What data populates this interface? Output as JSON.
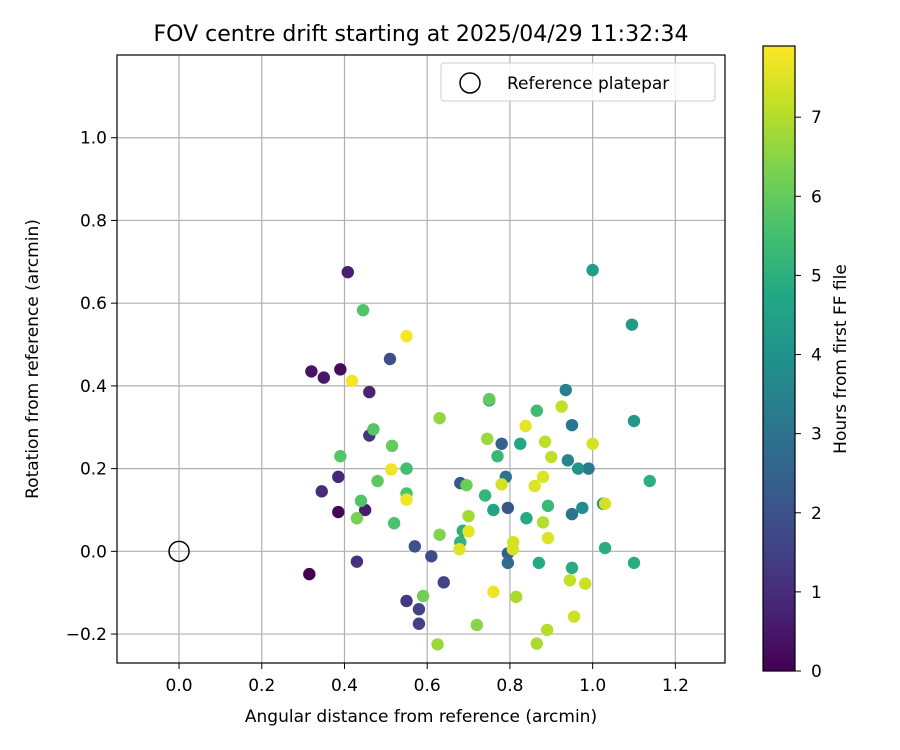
{
  "chart_data": {
    "type": "scatter",
    "title": "FOV centre drift starting at 2025/04/29 11:32:34",
    "xlabel": "Angular distance from reference (arcmin)",
    "ylabel": "Rotation from reference (arcmin)",
    "xlim": [
      -0.15,
      1.32
    ],
    "ylim": [
      -0.27,
      1.2
    ],
    "xticks": [
      0.0,
      0.2,
      0.4,
      0.6,
      0.8,
      1.0,
      1.2
    ],
    "xtick_labels": [
      "0.0",
      "0.2",
      "0.4",
      "0.6",
      "0.8",
      "1.0",
      "1.2"
    ],
    "yticks": [
      -0.2,
      0.0,
      0.2,
      0.4,
      0.6,
      0.8,
      1.0
    ],
    "ytick_labels": [
      "−0.2",
      "0.0",
      "0.2",
      "0.4",
      "0.6",
      "0.8",
      "1.0"
    ],
    "grid": true,
    "legend": {
      "location": "top-right",
      "entries": [
        "Reference platepar"
      ]
    },
    "reference": {
      "x": 0.0,
      "y": 0.0,
      "label": "Reference platepar"
    },
    "colorbar": {
      "label": "Hours from first FF file",
      "range": [
        0,
        7.9
      ],
      "ticks": [
        0,
        1,
        2,
        3,
        4,
        5,
        6,
        7
      ],
      "tick_labels": [
        "0",
        "1",
        "2",
        "3",
        "4",
        "5",
        "6",
        "7"
      ],
      "colormap": "viridis"
    },
    "points": [
      {
        "x": 0.315,
        "y": -0.055,
        "h": 0.0
      },
      {
        "x": 0.385,
        "y": 0.095,
        "h": 0.1
      },
      {
        "x": 0.39,
        "y": 0.44,
        "h": 0.2
      },
      {
        "x": 0.32,
        "y": 0.435,
        "h": 0.4
      },
      {
        "x": 0.35,
        "y": 0.42,
        "h": 0.5
      },
      {
        "x": 0.408,
        "y": 0.675,
        "h": 0.7
      },
      {
        "x": 0.46,
        "y": 0.385,
        "h": 0.8
      },
      {
        "x": 0.45,
        "y": 0.1,
        "h": 0.6
      },
      {
        "x": 0.385,
        "y": 0.18,
        "h": 0.9
      },
      {
        "x": 0.345,
        "y": 0.145,
        "h": 1.0
      },
      {
        "x": 0.43,
        "y": -0.025,
        "h": 1.1
      },
      {
        "x": 0.46,
        "y": 0.28,
        "h": 1.2
      },
      {
        "x": 0.55,
        "y": -0.12,
        "h": 1.3
      },
      {
        "x": 0.58,
        "y": -0.14,
        "h": 1.6
      },
      {
        "x": 0.58,
        "y": -0.175,
        "h": 1.5
      },
      {
        "x": 0.64,
        "y": -0.075,
        "h": 1.6
      },
      {
        "x": 0.61,
        "y": -0.012,
        "h": 1.8
      },
      {
        "x": 0.51,
        "y": 0.465,
        "h": 1.9
      },
      {
        "x": 0.57,
        "y": 0.012,
        "h": 2.0
      },
      {
        "x": 0.68,
        "y": 0.165,
        "h": 2.2
      },
      {
        "x": 0.795,
        "y": 0.105,
        "h": 2.1
      },
      {
        "x": 0.795,
        "y": -0.005,
        "h": 2.4
      },
      {
        "x": 0.795,
        "y": -0.028,
        "h": 2.8
      },
      {
        "x": 0.78,
        "y": 0.26,
        "h": 2.5
      },
      {
        "x": 0.79,
        "y": 0.18,
        "h": 3.0
      },
      {
        "x": 0.935,
        "y": 0.39,
        "h": 3.4
      },
      {
        "x": 0.95,
        "y": 0.305,
        "h": 3.1
      },
      {
        "x": 0.95,
        "y": 0.09,
        "h": 3.0
      },
      {
        "x": 0.99,
        "y": 0.2,
        "h": 3.2
      },
      {
        "x": 0.94,
        "y": 0.22,
        "h": 3.6
      },
      {
        "x": 0.965,
        "y": 0.2,
        "h": 4.1
      },
      {
        "x": 0.975,
        "y": 0.105,
        "h": 3.9
      },
      {
        "x": 1.025,
        "y": 0.115,
        "h": 4.0
      },
      {
        "x": 1.1,
        "y": 0.315,
        "h": 4.2
      },
      {
        "x": 1.095,
        "y": 0.548,
        "h": 4.3
      },
      {
        "x": 1.0,
        "y": 0.68,
        "h": 4.4
      },
      {
        "x": 0.75,
        "y": 0.365,
        "h": 4.5
      },
      {
        "x": 0.76,
        "y": 0.1,
        "h": 4.6
      },
      {
        "x": 0.825,
        "y": 0.26,
        "h": 4.7
      },
      {
        "x": 0.84,
        "y": 0.08,
        "h": 4.8
      },
      {
        "x": 0.87,
        "y": -0.028,
        "h": 4.8
      },
      {
        "x": 0.95,
        "y": -0.04,
        "h": 4.9
      },
      {
        "x": 1.03,
        "y": 0.008,
        "h": 4.9
      },
      {
        "x": 1.1,
        "y": -0.028,
        "h": 4.9
      },
      {
        "x": 1.138,
        "y": 0.17,
        "h": 5.0
      },
      {
        "x": 0.686,
        "y": 0.05,
        "h": 5.0
      },
      {
        "x": 0.68,
        "y": 0.022,
        "h": 5.1
      },
      {
        "x": 0.74,
        "y": 0.135,
        "h": 5.2
      },
      {
        "x": 0.77,
        "y": 0.23,
        "h": 5.3
      },
      {
        "x": 0.892,
        "y": 0.11,
        "h": 5.3
      },
      {
        "x": 0.865,
        "y": 0.34,
        "h": 5.4
      },
      {
        "x": 0.55,
        "y": 0.2,
        "h": 5.5
      },
      {
        "x": 0.55,
        "y": 0.14,
        "h": 5.6
      },
      {
        "x": 0.52,
        "y": 0.068,
        "h": 5.6
      },
      {
        "x": 0.44,
        "y": 0.122,
        "h": 5.7
      },
      {
        "x": 0.445,
        "y": 0.583,
        "h": 5.7
      },
      {
        "x": 0.39,
        "y": 0.23,
        "h": 5.8
      },
      {
        "x": 0.47,
        "y": 0.295,
        "h": 5.8
      },
      {
        "x": 0.48,
        "y": 0.17,
        "h": 5.9
      },
      {
        "x": 0.515,
        "y": 0.255,
        "h": 6.0
      },
      {
        "x": 0.75,
        "y": 0.368,
        "h": 6.0
      },
      {
        "x": 0.695,
        "y": 0.16,
        "h": 6.1
      },
      {
        "x": 0.59,
        "y": -0.108,
        "h": 6.2
      },
      {
        "x": 0.43,
        "y": 0.08,
        "h": 6.3
      },
      {
        "x": 0.63,
        "y": 0.04,
        "h": 6.4
      },
      {
        "x": 0.72,
        "y": -0.178,
        "h": 6.5
      },
      {
        "x": 0.63,
        "y": 0.322,
        "h": 6.6
      },
      {
        "x": 0.625,
        "y": -0.225,
        "h": 6.7
      },
      {
        "x": 0.745,
        "y": 0.272,
        "h": 6.7
      },
      {
        "x": 0.7,
        "y": 0.085,
        "h": 6.8
      },
      {
        "x": 0.815,
        "y": -0.11,
        "h": 6.9
      },
      {
        "x": 0.865,
        "y": -0.223,
        "h": 6.9
      },
      {
        "x": 0.89,
        "y": -0.19,
        "h": 7.0
      },
      {
        "x": 0.88,
        "y": 0.07,
        "h": 7.0
      },
      {
        "x": 0.885,
        "y": 0.265,
        "h": 7.1
      },
      {
        "x": 0.9,
        "y": 0.228,
        "h": 7.1
      },
      {
        "x": 0.925,
        "y": 0.35,
        "h": 7.2
      },
      {
        "x": 0.945,
        "y": -0.07,
        "h": 7.2
      },
      {
        "x": 0.955,
        "y": -0.158,
        "h": 7.3
      },
      {
        "x": 0.982,
        "y": -0.078,
        "h": 7.3
      },
      {
        "x": 1.0,
        "y": 0.26,
        "h": 7.4
      },
      {
        "x": 1.03,
        "y": 0.115,
        "h": 7.4
      },
      {
        "x": 0.808,
        "y": 0.022,
        "h": 7.4
      },
      {
        "x": 0.807,
        "y": 0.005,
        "h": 7.4
      },
      {
        "x": 0.78,
        "y": 0.162,
        "h": 7.4
      },
      {
        "x": 0.86,
        "y": 0.158,
        "h": 7.5
      },
      {
        "x": 0.88,
        "y": 0.18,
        "h": 7.5
      },
      {
        "x": 0.892,
        "y": 0.032,
        "h": 7.5
      },
      {
        "x": 0.678,
        "y": 0.005,
        "h": 7.5
      },
      {
        "x": 0.7,
        "y": 0.048,
        "h": 7.6
      },
      {
        "x": 0.838,
        "y": 0.303,
        "h": 7.6
      },
      {
        "x": 0.76,
        "y": -0.098,
        "h": 7.7
      },
      {
        "x": 0.513,
        "y": 0.198,
        "h": 7.7
      },
      {
        "x": 0.55,
        "y": 0.125,
        "h": 7.7
      },
      {
        "x": 0.55,
        "y": 0.52,
        "h": 7.8
      },
      {
        "x": 0.418,
        "y": 0.412,
        "h": 7.8
      }
    ]
  }
}
